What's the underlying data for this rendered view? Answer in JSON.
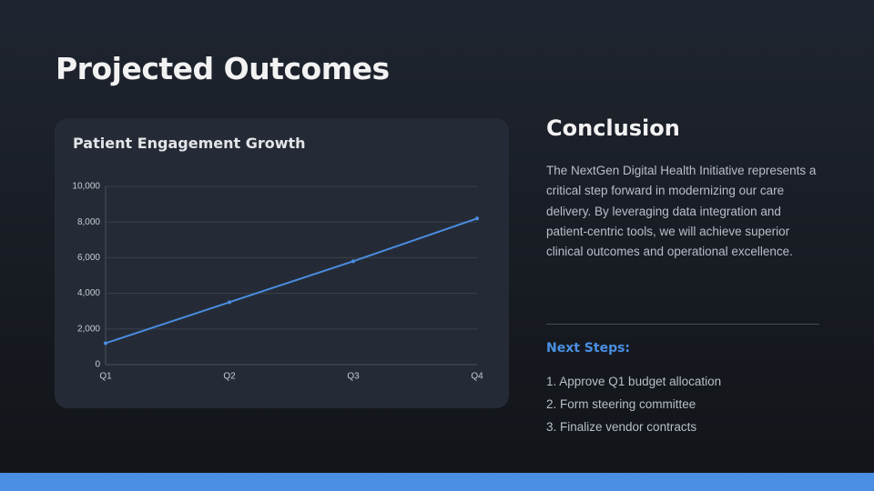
{
  "title": "Projected Outcomes",
  "chart_data": {
    "type": "line",
    "title": "Patient Engagement Growth",
    "categories": [
      "Q1",
      "Q2",
      "Q3",
      "Q4"
    ],
    "series": [
      {
        "name": "Patient Engagement",
        "color": "#4a8ce0",
        "values": [
          1200,
          3500,
          5800,
          8200
        ]
      }
    ],
    "ylim": [
      0,
      10000
    ],
    "yticks": [
      0,
      {
        "value": 2000,
        "label": "2,000"
      },
      {
        "value": 4000,
        "label": "4,000"
      },
      {
        "value": 6000,
        "label": "6,000"
      },
      {
        "value": 8000,
        "label": "8,000"
      },
      {
        "value": 10000,
        "label": "10,000"
      }
    ],
    "grid": true,
    "legend": false
  },
  "conclusion": {
    "heading": "Conclusion",
    "body": "The NextGen Digital Health Initiative represents a critical step forward in modernizing our care delivery. By leveraging data integration and patient-centric tools, we will achieve superior clinical outcomes and operational excellence."
  },
  "next_steps": {
    "heading": "Next Steps:",
    "items": [
      "1. Approve Q1 budget allocation",
      "2. Form steering committee",
      "3. Finalize vendor contracts"
    ]
  }
}
